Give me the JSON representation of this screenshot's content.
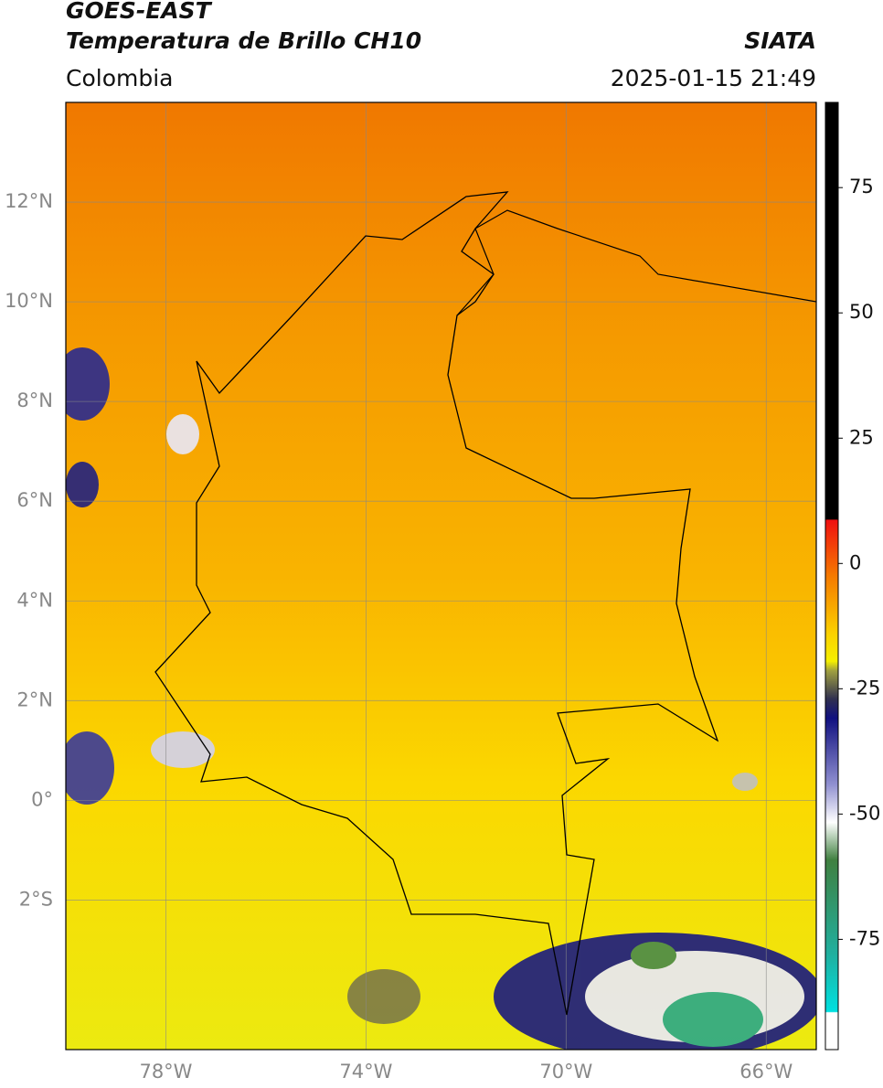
{
  "header": {
    "title": "GOES-EAST",
    "subtitle": "Temperatura de Brillo CH10",
    "source": "SIATA",
    "region": "Colombia",
    "datetime": "2025-01-15 21:49"
  },
  "map": {
    "lon_range": [
      -80,
      -65
    ],
    "lat_range": [
      -5,
      14
    ],
    "lat_ticks": [
      {
        "value": 12,
        "label": "12°N"
      },
      {
        "value": 10,
        "label": "10°N"
      },
      {
        "value": 8,
        "label": "8°N"
      },
      {
        "value": 6,
        "label": "6°N"
      },
      {
        "value": 4,
        "label": "4°N"
      },
      {
        "value": 2,
        "label": "2°N"
      },
      {
        "value": 0,
        "label": "0°"
      },
      {
        "value": -2,
        "label": "2°S"
      }
    ],
    "lon_ticks": [
      {
        "value": -78,
        "label": "78°W"
      },
      {
        "value": -74,
        "label": "74°W"
      },
      {
        "value": -70,
        "label": "70°W"
      },
      {
        "value": -66,
        "label": "66°W"
      }
    ]
  },
  "colorbar": {
    "range": [
      -97,
      92
    ],
    "ticks": [
      75,
      50,
      25,
      0,
      -25,
      -50,
      -75
    ]
  }
}
